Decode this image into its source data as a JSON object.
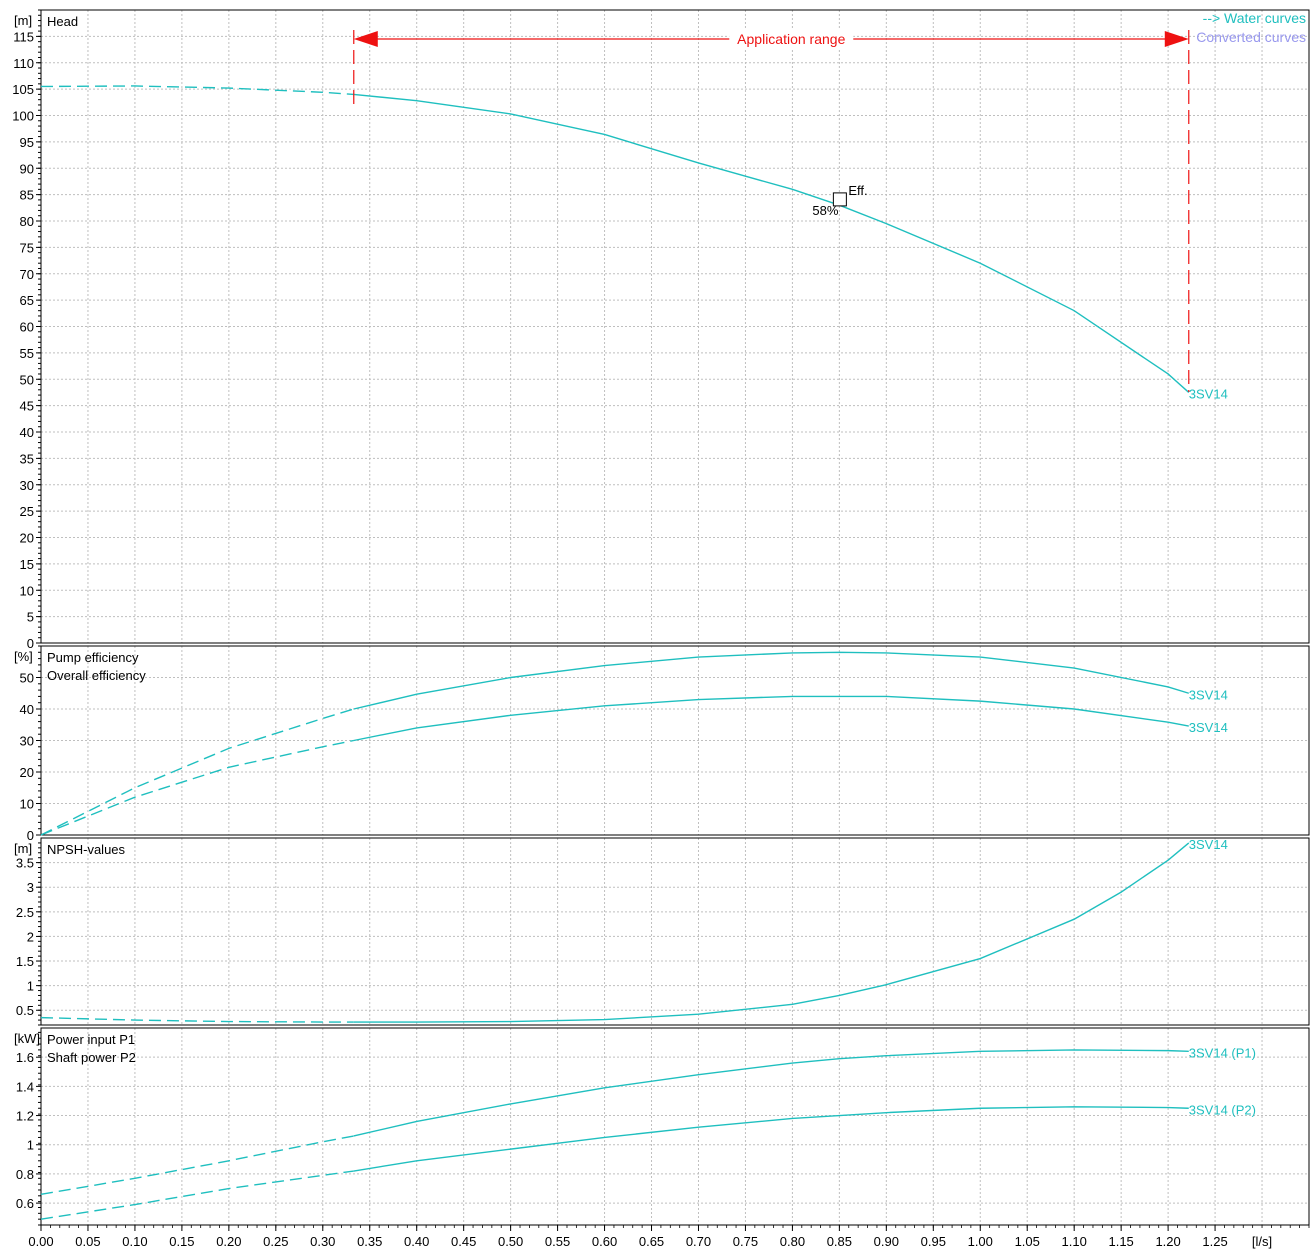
{
  "colors": {
    "curve": "#1fbfbf",
    "grid": "#bfbfbf",
    "range": "#ee1111",
    "converted": "#9999ee",
    "axis": "#000000"
  },
  "legend": {
    "water_curves": "--> Water curves",
    "converted_curves": "Converted curves"
  },
  "x_axis": {
    "unit": "[l/s]",
    "ticks": [
      "0.00",
      "0.05",
      "0.10",
      "0.15",
      "0.20",
      "0.25",
      "0.30",
      "0.35",
      "0.40",
      "0.45",
      "0.50",
      "0.55",
      "0.60",
      "0.65",
      "0.70",
      "0.75",
      "0.80",
      "0.85",
      "0.90",
      "0.95",
      "1.00",
      "1.05",
      "1.10",
      "1.15",
      "1.20",
      "1.25"
    ]
  },
  "chart_data": [
    {
      "type": "line",
      "title": "Head",
      "ylabel": "[m]",
      "ylim": [
        0,
        120
      ],
      "yticks": [
        0,
        5,
        10,
        15,
        20,
        25,
        30,
        35,
        40,
        45,
        50,
        55,
        60,
        65,
        70,
        75,
        80,
        85,
        90,
        95,
        100,
        105,
        110,
        115
      ],
      "xlim": [
        0,
        1.35
      ],
      "application_range": {
        "label": "Application range",
        "x": [
          0.333,
          1.222
        ]
      },
      "efficiency_point": {
        "x": 0.85,
        "y": 84,
        "label": "Eff.",
        "value": "58%"
      },
      "series": [
        {
          "name": "3SV14",
          "x": [
            0.0,
            0.1,
            0.2,
            0.3,
            0.333,
            0.4,
            0.5,
            0.6,
            0.7,
            0.8,
            0.85,
            0.9,
            1.0,
            1.1,
            1.2,
            1.222
          ],
          "y": [
            105.5,
            105.6,
            105.2,
            104.4,
            104.0,
            102.8,
            100.3,
            96.4,
            91.0,
            86.0,
            83.0,
            79.5,
            72.0,
            63.0,
            51.0,
            47.5
          ],
          "dashed_below": 0.333
        }
      ]
    },
    {
      "type": "line",
      "title": "Pump efficiency",
      "subtitle": "Overall efficiency",
      "ylabel": "[%]",
      "ylim": [
        0,
        60
      ],
      "yticks": [
        0,
        10,
        20,
        30,
        40,
        50
      ],
      "xlim": [
        0,
        1.35
      ],
      "series": [
        {
          "name": "3SV14",
          "x": [
            0.0,
            0.1,
            0.2,
            0.3,
            0.333,
            0.4,
            0.5,
            0.6,
            0.7,
            0.8,
            0.85,
            0.9,
            1.0,
            1.1,
            1.2,
            1.222
          ],
          "y": [
            0,
            15.0,
            27.5,
            37.0,
            40.0,
            44.7,
            50.0,
            53.8,
            56.5,
            57.8,
            58.0,
            57.8,
            56.5,
            53.0,
            47.0,
            45.0
          ],
          "dashed_below": 0.333
        },
        {
          "name": "3SV14",
          "x": [
            0.0,
            0.1,
            0.2,
            0.3,
            0.333,
            0.4,
            0.5,
            0.6,
            0.7,
            0.8,
            0.85,
            0.9,
            1.0,
            1.1,
            1.2,
            1.222
          ],
          "y": [
            0,
            12.0,
            21.5,
            28.0,
            30.0,
            34.0,
            38.0,
            41.0,
            43.0,
            44.0,
            44.0,
            44.0,
            42.5,
            40.0,
            35.8,
            34.6
          ],
          "dashed_below": 0.333
        }
      ]
    },
    {
      "type": "line",
      "title": "NPSH-values",
      "ylabel": "[m]",
      "ylim": [
        0.2,
        4.0
      ],
      "yticks": [
        0.5,
        1.0,
        1.5,
        2.0,
        2.5,
        3.0,
        3.5
      ],
      "xlim": [
        0,
        1.35
      ],
      "series": [
        {
          "name": "3SV14",
          "x": [
            0.0,
            0.1,
            0.2,
            0.3,
            0.333,
            0.4,
            0.5,
            0.6,
            0.7,
            0.8,
            0.85,
            0.9,
            1.0,
            1.1,
            1.15,
            1.2,
            1.222
          ],
          "y": [
            0.35,
            0.3,
            0.27,
            0.26,
            0.26,
            0.26,
            0.27,
            0.31,
            0.42,
            0.62,
            0.8,
            1.02,
            1.55,
            2.35,
            2.9,
            3.55,
            3.9
          ],
          "dashed_below": 0.333
        }
      ]
    },
    {
      "type": "line",
      "title": "Power input P1",
      "subtitle": "Shaft power P2",
      "ylabel": "[kW]",
      "ylim": [
        0.45,
        1.8
      ],
      "yticks": [
        0.6,
        0.8,
        1.0,
        1.2,
        1.4,
        1.6
      ],
      "xlim": [
        0,
        1.35
      ],
      "series": [
        {
          "name": "3SV14 (P1)",
          "x": [
            0.0,
            0.1,
            0.2,
            0.3,
            0.333,
            0.4,
            0.5,
            0.6,
            0.7,
            0.8,
            0.85,
            0.9,
            1.0,
            1.1,
            1.2,
            1.222
          ],
          "y": [
            0.66,
            0.77,
            0.89,
            1.02,
            1.06,
            1.16,
            1.28,
            1.39,
            1.48,
            1.56,
            1.59,
            1.61,
            1.64,
            1.65,
            1.645,
            1.64
          ],
          "dashed_below": 0.333
        },
        {
          "name": "3SV14 (P2)",
          "x": [
            0.0,
            0.1,
            0.2,
            0.3,
            0.333,
            0.4,
            0.5,
            0.6,
            0.7,
            0.8,
            0.85,
            0.9,
            1.0,
            1.1,
            1.2,
            1.222
          ],
          "y": [
            0.49,
            0.59,
            0.7,
            0.79,
            0.82,
            0.89,
            0.97,
            1.05,
            1.12,
            1.18,
            1.2,
            1.22,
            1.25,
            1.26,
            1.255,
            1.25
          ],
          "dashed_below": 0.333
        }
      ]
    }
  ]
}
